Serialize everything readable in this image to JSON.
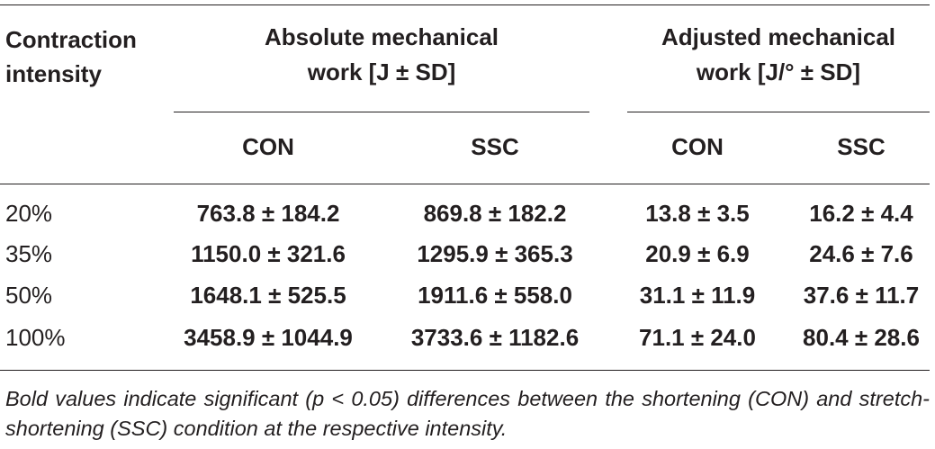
{
  "table": {
    "header": {
      "intensity_line1": "Contraction",
      "intensity_line2": "intensity",
      "absolute_line1": "Absolute mechanical",
      "absolute_line2": "work [J ± SD]",
      "adjusted_line1": "Adjusted mechanical",
      "adjusted_line2": "work [J/° ± SD]",
      "subcolumns": [
        "CON",
        "SSC",
        "CON",
        "SSC"
      ]
    },
    "rows": [
      {
        "intensity": "20%",
        "abs_con": "763.8 ± 184.2",
        "abs_ssc": "869.8 ± 182.2",
        "adj_con": "13.8 ± 3.5",
        "adj_ssc": "16.2 ± 4.4"
      },
      {
        "intensity": "35%",
        "abs_con": "1150.0 ± 321.6",
        "abs_ssc": "1295.9 ± 365.3",
        "adj_con": "20.9 ± 6.9",
        "adj_ssc": "24.6 ± 7.6"
      },
      {
        "intensity": "50%",
        "abs_con": "1648.1 ± 525.5",
        "abs_ssc": "1911.6 ± 558.0",
        "adj_con": "31.1 ± 11.9",
        "adj_ssc": "37.6 ± 11.7"
      },
      {
        "intensity": "100%",
        "abs_con": "3458.9 ± 1044.9",
        "abs_ssc": "3733.6 ± 1182.6",
        "adj_con": "71.1 ± 24.0",
        "adj_ssc": "80.4 ± 28.6"
      }
    ],
    "footnote": "Bold values indicate significant (p < 0.05) differences between the shortening (CON) and stretch-shortening (SSC) condition at the respective intensity."
  },
  "colors": {
    "text": "#231f20",
    "rules": "#231f20",
    "background": "#ffffff"
  }
}
